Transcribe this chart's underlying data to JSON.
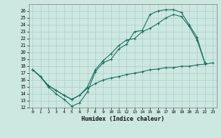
{
  "xlabel": "Humidex (Indice chaleur)",
  "bg_color": "#cce8e0",
  "grid_color": "#aacccc",
  "line_color": "#1a6b5e",
  "xlim": [
    -0.5,
    23.5
  ],
  "ylim": [
    12,
    27
  ],
  "xticks": [
    0,
    1,
    2,
    3,
    4,
    5,
    6,
    7,
    8,
    9,
    10,
    11,
    12,
    13,
    14,
    15,
    16,
    17,
    18,
    19,
    20,
    21,
    22,
    23
  ],
  "yticks": [
    12,
    13,
    14,
    15,
    16,
    17,
    18,
    19,
    20,
    21,
    22,
    23,
    24,
    25,
    26
  ],
  "line1_x": [
    0,
    1,
    2,
    3,
    4,
    5,
    6,
    7,
    8,
    9,
    10,
    11,
    12,
    13,
    14,
    15,
    16,
    17,
    18,
    19,
    20,
    21,
    22
  ],
  "line1_y": [
    17.5,
    16.5,
    15.0,
    14.0,
    13.2,
    12.2,
    12.7,
    14.3,
    17.2,
    18.5,
    19.0,
    20.5,
    21.2,
    23.0,
    23.2,
    25.5,
    26.0,
    26.2,
    26.2,
    25.8,
    24.0,
    22.2,
    18.5
  ],
  "line2_x": [
    0,
    1,
    2,
    3,
    4,
    5,
    6,
    7,
    8,
    9,
    10,
    11,
    12,
    13,
    14,
    15,
    16,
    17,
    18,
    19,
    20,
    21,
    22
  ],
  "line2_y": [
    17.5,
    16.5,
    15.2,
    14.5,
    13.8,
    13.2,
    13.8,
    15.0,
    17.5,
    18.8,
    19.8,
    21.0,
    21.8,
    22.0,
    23.0,
    23.5,
    24.2,
    25.0,
    25.5,
    25.2,
    23.8,
    21.8,
    18.5
  ],
  "line3_x": [
    0,
    1,
    2,
    3,
    4,
    5,
    6,
    7,
    8,
    9,
    10,
    11,
    12,
    13,
    14,
    15,
    16,
    17,
    18,
    19,
    20,
    21,
    22,
    23
  ],
  "line3_y": [
    17.5,
    16.5,
    15.2,
    14.5,
    13.8,
    13.2,
    13.8,
    14.8,
    15.5,
    16.0,
    16.3,
    16.5,
    16.8,
    17.0,
    17.2,
    17.5,
    17.6,
    17.8,
    17.8,
    18.0,
    18.0,
    18.2,
    18.3,
    18.5
  ]
}
